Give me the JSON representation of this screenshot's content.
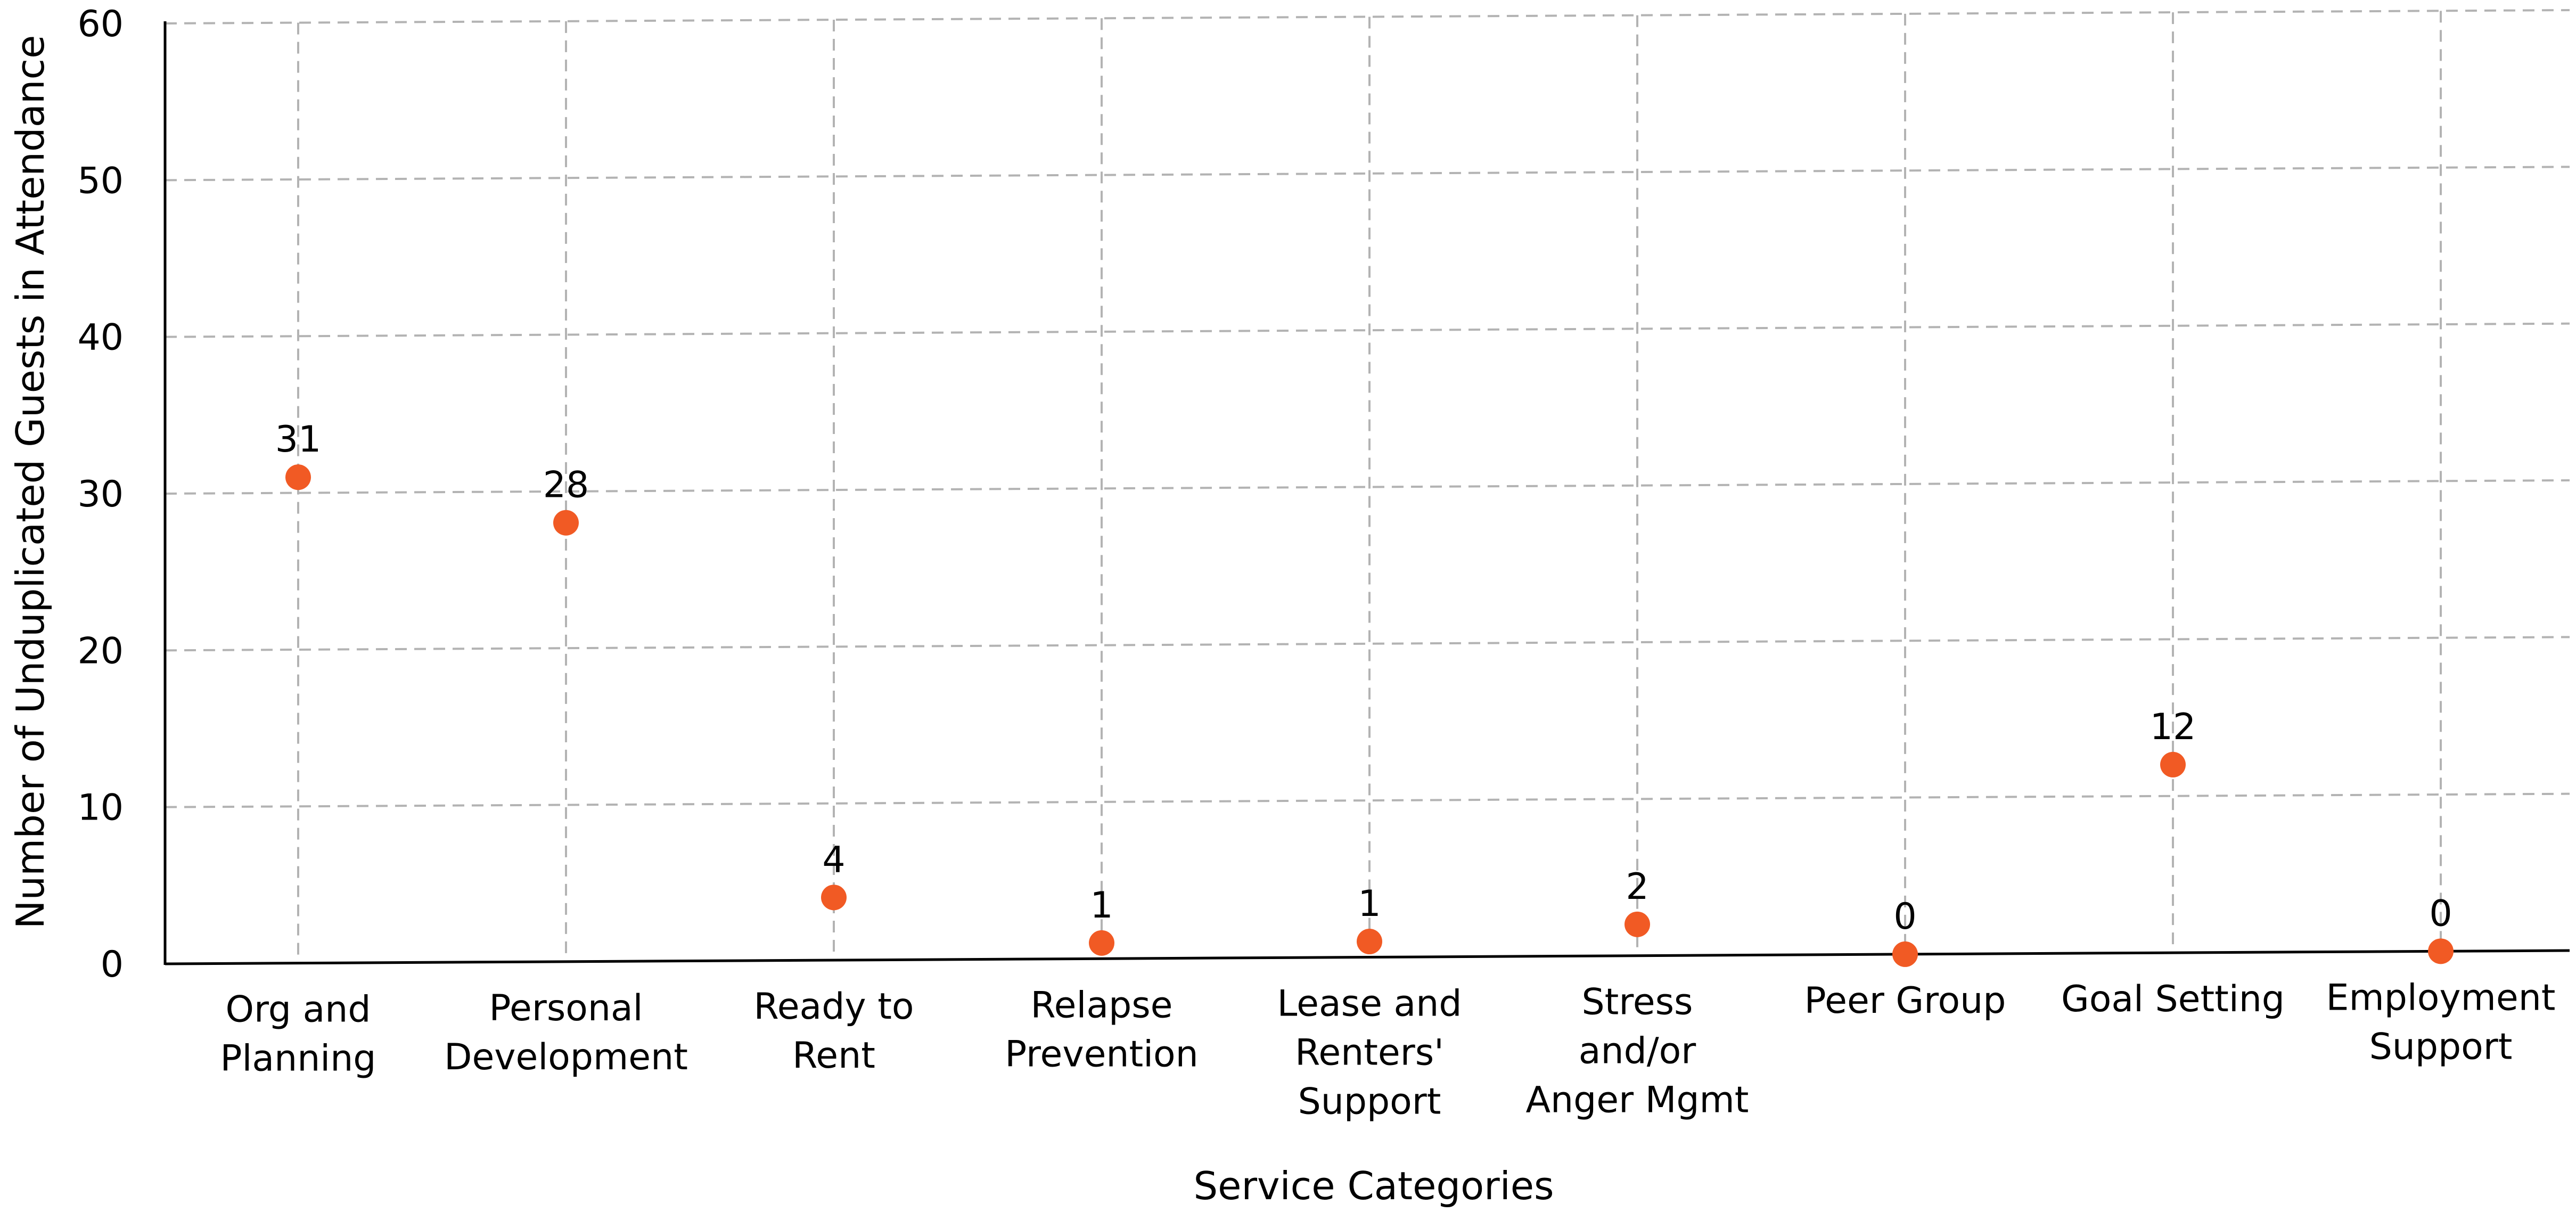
{
  "chart_data": {
    "type": "scatter",
    "title": "",
    "xlabel": "Service Categories",
    "ylabel": "Number of Unduplicated Guests in Attendance",
    "ylim": [
      0,
      60
    ],
    "yticks": [
      0,
      10,
      20,
      30,
      40,
      50,
      60
    ],
    "grid": true,
    "categories": [
      [
        "Org and",
        "Planning"
      ],
      [
        "Personal",
        "Development"
      ],
      [
        "Ready to",
        "Rent"
      ],
      [
        "Relapse",
        "Prevention"
      ],
      [
        "Lease and",
        "Renters'",
        "Support"
      ],
      [
        "Stress",
        "and/or",
        "Anger Mgmt"
      ],
      [
        "Peer Group"
      ],
      [
        "Goal Setting"
      ],
      [
        "Employment",
        "Support"
      ]
    ],
    "values": [
      31,
      28,
      4,
      1,
      1,
      2,
      0,
      12,
      0
    ],
    "data_labels": [
      "31",
      "28",
      "4",
      "1",
      "1",
      "2",
      "0",
      "12",
      "0"
    ],
    "marker_color": "#f15a24"
  }
}
